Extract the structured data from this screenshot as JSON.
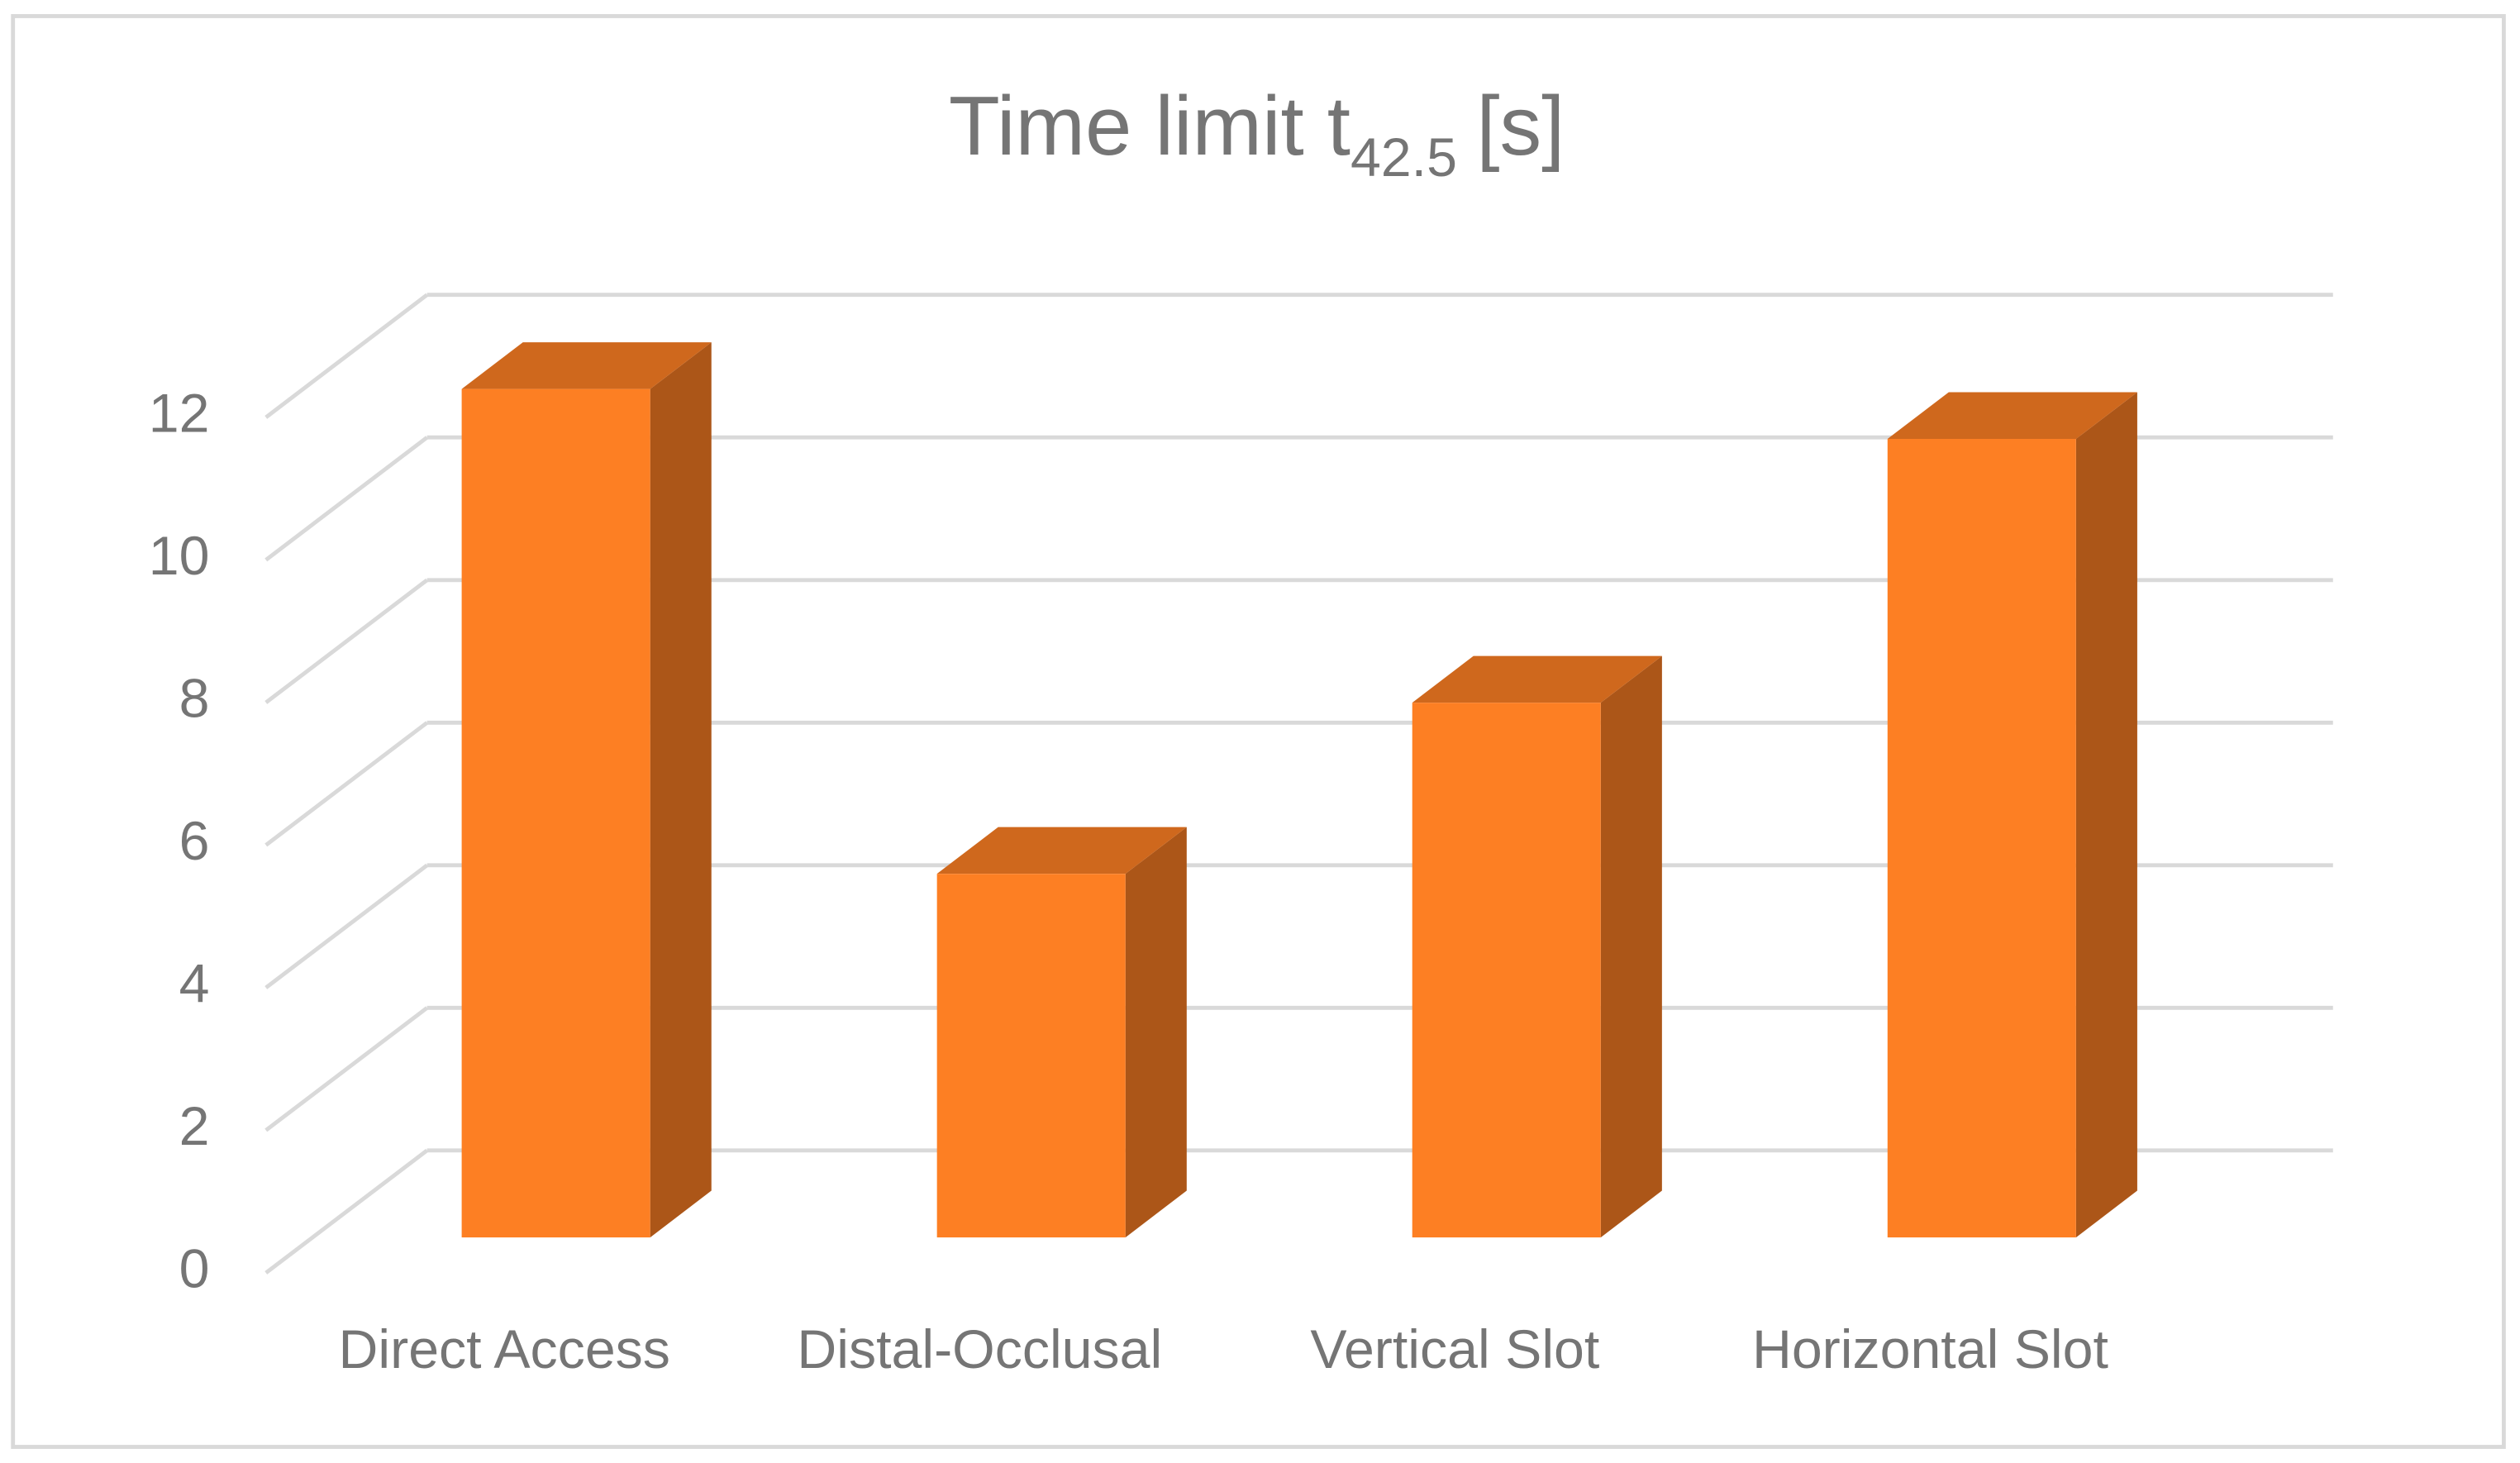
{
  "chart_data": {
    "type": "bar3d",
    "title": "Time limit t",
    "title_subscript": "42.5",
    "title_suffix": "[s]",
    "categories": [
      "Direct Access",
      "Distal-Occlusal",
      "Vertical Slot",
      "Horizontal Slot"
    ],
    "values": [
      11.9,
      5.1,
      7.5,
      11.2
    ],
    "color": "#fd7f23",
    "ylim": [
      0,
      12
    ],
    "yticks": [
      0,
      2,
      4,
      6,
      8,
      10,
      12
    ],
    "grid": true
  }
}
